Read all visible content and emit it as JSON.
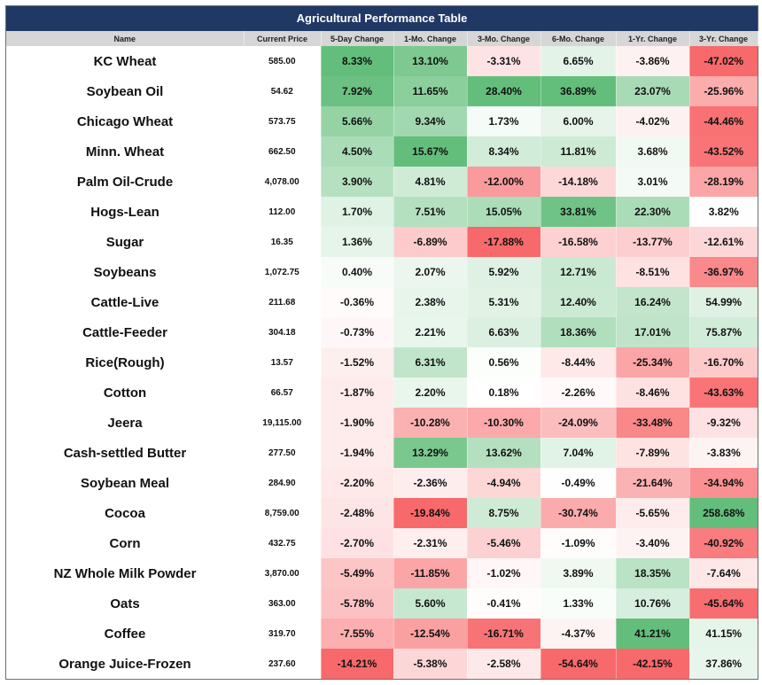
{
  "title": "Agricultural Performance Table",
  "headers": [
    "Name",
    "Current Price",
    "5-Day Change",
    "1-Mo. Change",
    "3-Mo. Change",
    "6-Mo. Change",
    "1-Yr. Change",
    "3-Yr. Change"
  ],
  "colors": {
    "title_bg": "#1f3864",
    "header_bg": "#d6d6d6",
    "positive": "#63be7b",
    "negative": "#f8696b",
    "neutral": "#ffffff"
  },
  "rows": [
    {
      "name": "KC Wheat",
      "price": "585.00",
      "changes": [
        "8.33%",
        "13.10%",
        "-3.31%",
        "6.65%",
        "-3.86%",
        "-47.02%"
      ]
    },
    {
      "name": "Soybean Oil",
      "price": "54.62",
      "changes": [
        "7.92%",
        "11.65%",
        "28.40%",
        "36.89%",
        "23.07%",
        "-25.96%"
      ]
    },
    {
      "name": "Chicago Wheat",
      "price": "573.75",
      "changes": [
        "5.66%",
        "9.34%",
        "1.73%",
        "6.00%",
        "-4.02%",
        "-44.46%"
      ]
    },
    {
      "name": "Minn. Wheat",
      "price": "662.50",
      "changes": [
        "4.50%",
        "15.67%",
        "8.34%",
        "11.81%",
        "3.68%",
        "-43.52%"
      ]
    },
    {
      "name": "Palm Oil-Crude",
      "price": "4,078.00",
      "changes": [
        "3.90%",
        "4.81%",
        "-12.00%",
        "-14.18%",
        "3.01%",
        "-28.19%"
      ]
    },
    {
      "name": "Hogs-Lean",
      "price": "112.00",
      "changes": [
        "1.70%",
        "7.51%",
        "15.05%",
        "33.81%",
        "22.30%",
        "3.82%"
      ]
    },
    {
      "name": "Sugar",
      "price": "16.35",
      "changes": [
        "1.36%",
        "-6.89%",
        "-17.88%",
        "-16.58%",
        "-13.77%",
        "-12.61%"
      ]
    },
    {
      "name": "Soybeans",
      "price": "1,072.75",
      "changes": [
        "0.40%",
        "2.07%",
        "5.92%",
        "12.71%",
        "-8.51%",
        "-36.97%"
      ]
    },
    {
      "name": "Cattle-Live",
      "price": "211.68",
      "changes": [
        "-0.36%",
        "2.38%",
        "5.31%",
        "12.40%",
        "16.24%",
        "54.99%"
      ]
    },
    {
      "name": "Cattle-Feeder",
      "price": "304.18",
      "changes": [
        "-0.73%",
        "2.21%",
        "6.63%",
        "18.36%",
        "17.01%",
        "75.87%"
      ]
    },
    {
      "name": "Rice(Rough)",
      "price": "13.57",
      "changes": [
        "-1.52%",
        "6.31%",
        "0.56%",
        "-8.44%",
        "-25.34%",
        "-16.70%"
      ]
    },
    {
      "name": "Cotton",
      "price": "66.57",
      "changes": [
        "-1.87%",
        "2.20%",
        "0.18%",
        "-2.26%",
        "-8.46%",
        "-43.63%"
      ]
    },
    {
      "name": "Jeera",
      "price": "19,115.00",
      "changes": [
        "-1.90%",
        "-10.28%",
        "-10.30%",
        "-24.09%",
        "-33.48%",
        "-9.32%"
      ]
    },
    {
      "name": "Cash-settled Butter",
      "price": "277.50",
      "changes": [
        "-1.94%",
        "13.29%",
        "13.62%",
        "7.04%",
        "-7.89%",
        "-3.83%"
      ]
    },
    {
      "name": "Soybean Meal",
      "price": "284.90",
      "changes": [
        "-2.20%",
        "-2.36%",
        "-4.94%",
        "-0.49%",
        "-21.64%",
        "-34.94%"
      ]
    },
    {
      "name": "Cocoa",
      "price": "8,759.00",
      "changes": [
        "-2.48%",
        "-19.84%",
        "8.75%",
        "-30.74%",
        "-5.65%",
        "258.68%"
      ]
    },
    {
      "name": "Corn",
      "price": "432.75",
      "changes": [
        "-2.70%",
        "-2.31%",
        "-5.46%",
        "-1.09%",
        "-3.40%",
        "-40.92%"
      ]
    },
    {
      "name": "NZ Whole Milk Powder",
      "price": "3,870.00",
      "changes": [
        "-5.49%",
        "-11.85%",
        "-1.02%",
        "3.89%",
        "18.35%",
        "-7.64%"
      ]
    },
    {
      "name": "Oats",
      "price": "363.00",
      "changes": [
        "-5.78%",
        "5.60%",
        "-0.41%",
        "1.33%",
        "10.76%",
        "-45.64%"
      ]
    },
    {
      "name": "Coffee",
      "price": "319.70",
      "changes": [
        "-7.55%",
        "-12.54%",
        "-16.71%",
        "-4.37%",
        "41.21%",
        "41.15%"
      ]
    },
    {
      "name": "Orange Juice-Frozen",
      "price": "237.60",
      "changes": [
        "-14.21%",
        "-5.38%",
        "-2.58%",
        "-54.64%",
        "-42.15%",
        "37.86%"
      ]
    }
  ]
}
